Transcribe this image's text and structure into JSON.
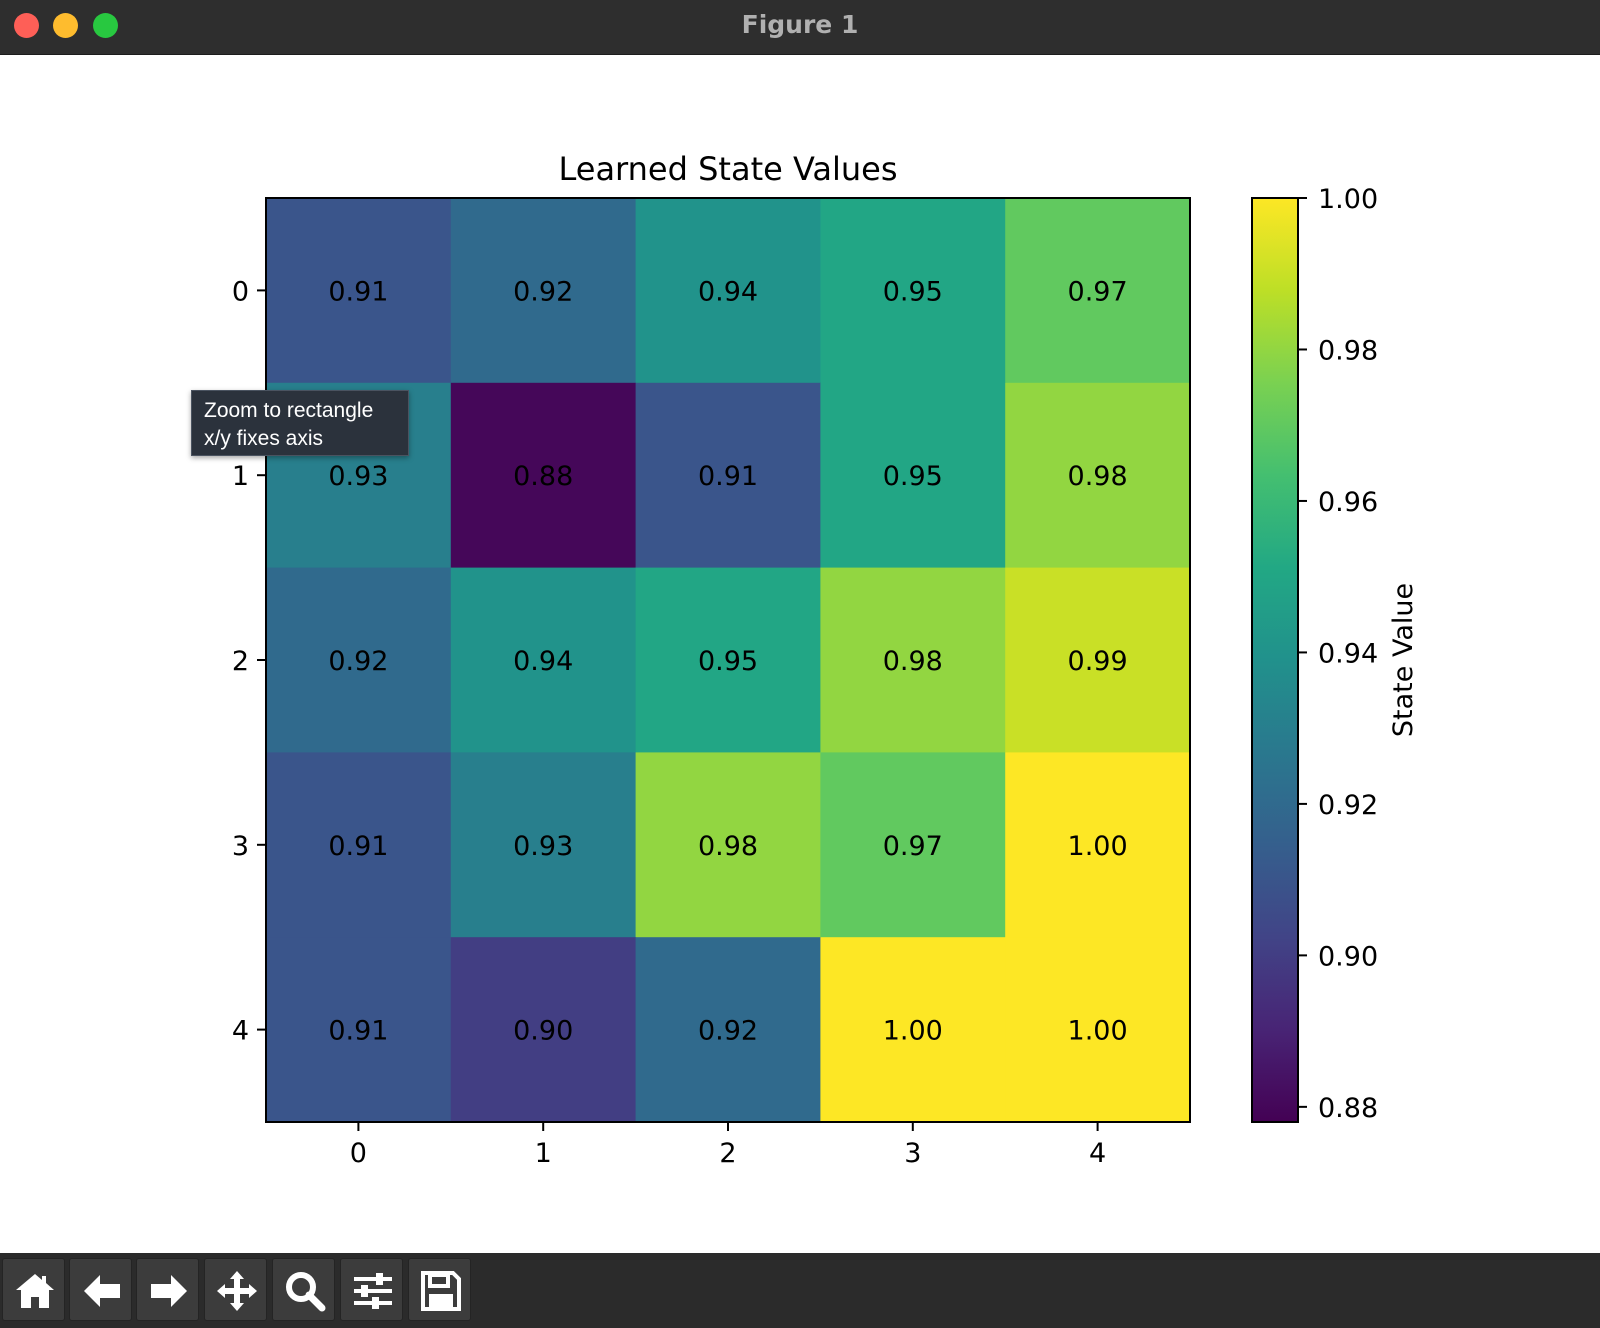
{
  "window": {
    "title": "Figure 1"
  },
  "tooltip": {
    "line1": "Zoom to rectangle",
    "line2": "x/y fixes axis"
  },
  "toolbar": {
    "buttons": [
      {
        "name": "home-button",
        "icon": "home-icon"
      },
      {
        "name": "back-button",
        "icon": "arrow-left-icon"
      },
      {
        "name": "forward-button",
        "icon": "arrow-right-icon"
      },
      {
        "name": "pan-button",
        "icon": "move-icon"
      },
      {
        "name": "zoom-button",
        "icon": "magnifier-icon"
      },
      {
        "name": "configure-subplots-button",
        "icon": "sliders-icon"
      },
      {
        "name": "save-button",
        "icon": "floppy-disk-icon"
      }
    ]
  },
  "chart_data": {
    "type": "heatmap",
    "title": "Learned State Values",
    "x": [
      "0",
      "1",
      "2",
      "3",
      "4"
    ],
    "y": [
      "0",
      "1",
      "2",
      "3",
      "4"
    ],
    "values": [
      [
        0.91,
        0.92,
        0.94,
        0.95,
        0.97
      ],
      [
        0.93,
        0.88,
        0.91,
        0.95,
        0.98
      ],
      [
        0.92,
        0.94,
        0.95,
        0.98,
        0.99
      ],
      [
        0.91,
        0.93,
        0.98,
        0.97,
        1.0
      ],
      [
        0.91,
        0.9,
        0.92,
        1.0,
        1.0
      ]
    ],
    "colormap": "viridis",
    "colorbar": {
      "label": "State Value",
      "range": [
        0.878,
        1.0
      ],
      "ticks": [
        1.0,
        0.98,
        0.96,
        0.94,
        0.92,
        0.9,
        0.88
      ],
      "tick_labels": [
        "1.00",
        "0.98",
        "0.96",
        "0.94",
        "0.92",
        "0.90",
        "0.88"
      ]
    }
  }
}
